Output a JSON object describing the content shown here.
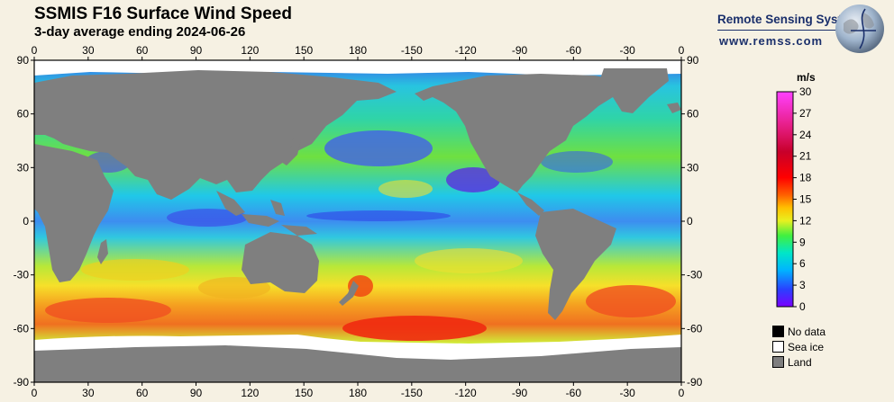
{
  "header": {
    "title": "SSMIS F16 Surface Wind Speed",
    "subtitle": "3-day average ending 2024-06-26"
  },
  "brand": {
    "name": "Remote Sensing Systems",
    "url": "www.remss.com"
  },
  "map": {
    "lon_ticks": [
      "0",
      "30",
      "60",
      "90",
      "120",
      "150",
      "180",
      "-150",
      "-120",
      "-90",
      "-60",
      "-30",
      "0"
    ],
    "lat_ticks": [
      "90",
      "60",
      "30",
      "0",
      "-30",
      "-60",
      "-90"
    ],
    "colors": {
      "land": "#7f7f7f",
      "sea_ice": "#ffffff",
      "no_data": "#000000"
    }
  },
  "colorbar": {
    "unit": "m/s",
    "min": 0,
    "max": 30,
    "ticks": [
      "30",
      "27",
      "24",
      "21",
      "18",
      "15",
      "12",
      "9",
      "6",
      "3",
      "0"
    ]
  },
  "legend": {
    "no_data": "No data",
    "sea_ice": "Sea ice",
    "land": "Land"
  }
}
